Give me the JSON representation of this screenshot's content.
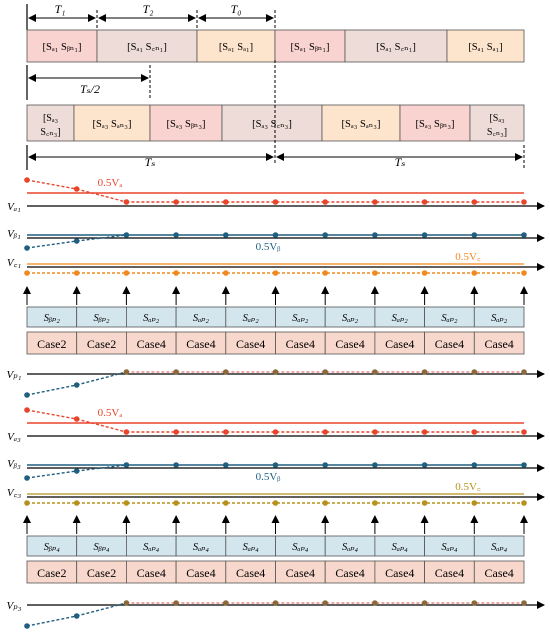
{
  "timing": {
    "T1": "T₁",
    "T2": "T₂",
    "T0": "T₀",
    "Ts_half": "Tₛ/2",
    "Ts": "Tₛ"
  },
  "seq1": [
    {
      "label": "[Sₐ₁ Sᵦₙ₁]",
      "color": "#f9d3d0"
    },
    {
      "label": "[Sₐ₁ S꜀ₙ₁]",
      "color": "#eddcd8"
    },
    {
      "label": "[Sₐ₁ Sₐ₁]",
      "color": "#fde4cc"
    },
    {
      "label": "[Sₐ₁ Sᵦₙ₁]",
      "color": "#f9d3d0"
    },
    {
      "label": "[Sₐ₁ S꜀ₙ₁]",
      "color": "#eddcd8"
    },
    {
      "label": "[Sₐ₁ Sₐ₁]",
      "color": "#fde4cc"
    }
  ],
  "seq3": [
    {
      "label1": "[Sₐ₃",
      "label2": "S꜀ₙ₃]",
      "color": "#eddcd8"
    },
    {
      "label1": "[Sₐ₃ Sₐₙ₃]",
      "label2": "",
      "color": "#fde4cc"
    },
    {
      "label1": "[Sₐ₃ Sᵦₙ₃]",
      "label2": "",
      "color": "#f9d3d0"
    },
    {
      "label1": "[Sₐ₃ S꜀ₙ₃]",
      "label2": "",
      "color": "#eddcd8"
    },
    {
      "label1": "[Sₐ₃ Sₐₙ₃]",
      "label2": "",
      "color": "#fde4cc"
    },
    {
      "label1": "[Sₐ₃ Sᵦₙ₃]",
      "label2": "",
      "color": "#f9d3d0"
    },
    {
      "label1": "[Sₐ₃",
      "label2": "S꜀ₙ₃]",
      "color": "#eddcd8"
    }
  ],
  "labels1": {
    "va": "Vₐ₁",
    "vb": "Vᵦ₁",
    "vc": "V꜀₁",
    "vp": "Vₚ₁",
    "half_a": "0.5Vₐ",
    "half_b": "0.5Vᵦ",
    "half_c": "0.5V꜀"
  },
  "labels3": {
    "va": "Vₐ₃",
    "vb": "Vᵦ₃",
    "vc": "V꜀₃",
    "vp": "Vₚ₃",
    "half_a": "0.5Vₐ",
    "half_b": "0.5Vᵦ",
    "half_c": "0.5V꜀"
  },
  "switch_row1": [
    "Sᵦₚ₂",
    "Sᵦₚ₂",
    "Sₐₚ₂",
    "Sₐₚ₂",
    "Sₐₚ₂",
    "Sₐₚ₂",
    "Sₐₚ₂",
    "Sₐₚ₂",
    "Sₐₚ₂",
    "Sₐₚ₂"
  ],
  "case_row1": [
    "Case2",
    "Case2",
    "Case4",
    "Case4",
    "Case4",
    "Case4",
    "Case4",
    "Case4",
    "Case4",
    "Case4"
  ],
  "switch_row2": [
    "Sᵦₚ₄",
    "Sᵦₚ₄",
    "Sₐₚ₄",
    "Sₐₚ₄",
    "Sₐₚ₄",
    "Sₐₚ₄",
    "Sₐₚ₄",
    "Sₐₚ₄",
    "Sₐₚ₄",
    "Sₐₚ₄"
  ],
  "case_row2": [
    "Case2",
    "Case2",
    "Case4",
    "Case4",
    "Case4",
    "Case4",
    "Case4",
    "Case4",
    "Case4",
    "Case4"
  ],
  "colors": {
    "red": "#e8452c",
    "blue": "#1f5f80",
    "orange": "#f08a1e",
    "gold": "#b8901c",
    "switch_fill": "#d3e6ee",
    "case_fill": "#f8d8cc"
  }
}
